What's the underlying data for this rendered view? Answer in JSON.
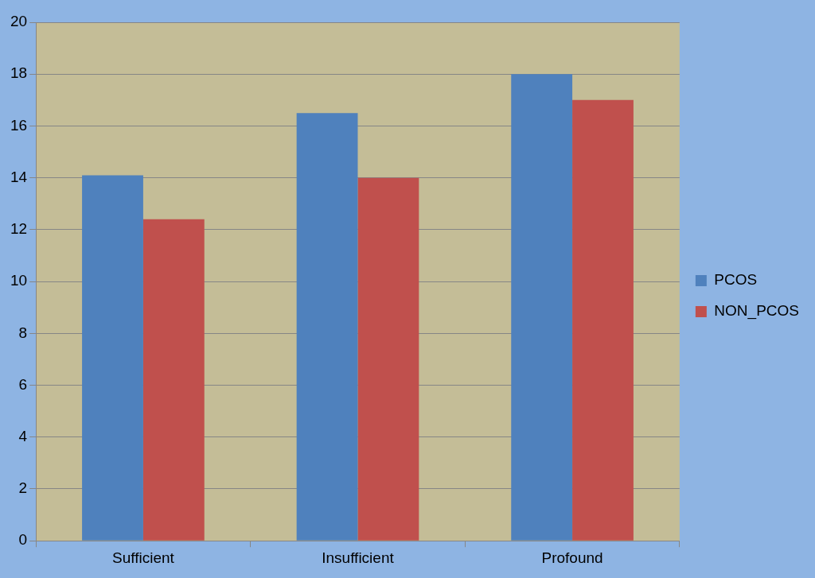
{
  "chart_data": {
    "type": "bar",
    "categories": [
      "Sufficient",
      "Insufficient",
      "Profound"
    ],
    "series": [
      {
        "name": "PCOS",
        "color": "#4f81bd",
        "values": [
          14.1,
          16.5,
          18
        ]
      },
      {
        "name": "NON_PCOS",
        "color": "#c0504d",
        "values": [
          12.4,
          14,
          17
        ]
      }
    ],
    "ylim": [
      0,
      20
    ],
    "yticks": [
      0,
      2,
      4,
      6,
      8,
      10,
      12,
      14,
      16,
      18,
      20
    ],
    "grid": "y",
    "legend": "right"
  }
}
